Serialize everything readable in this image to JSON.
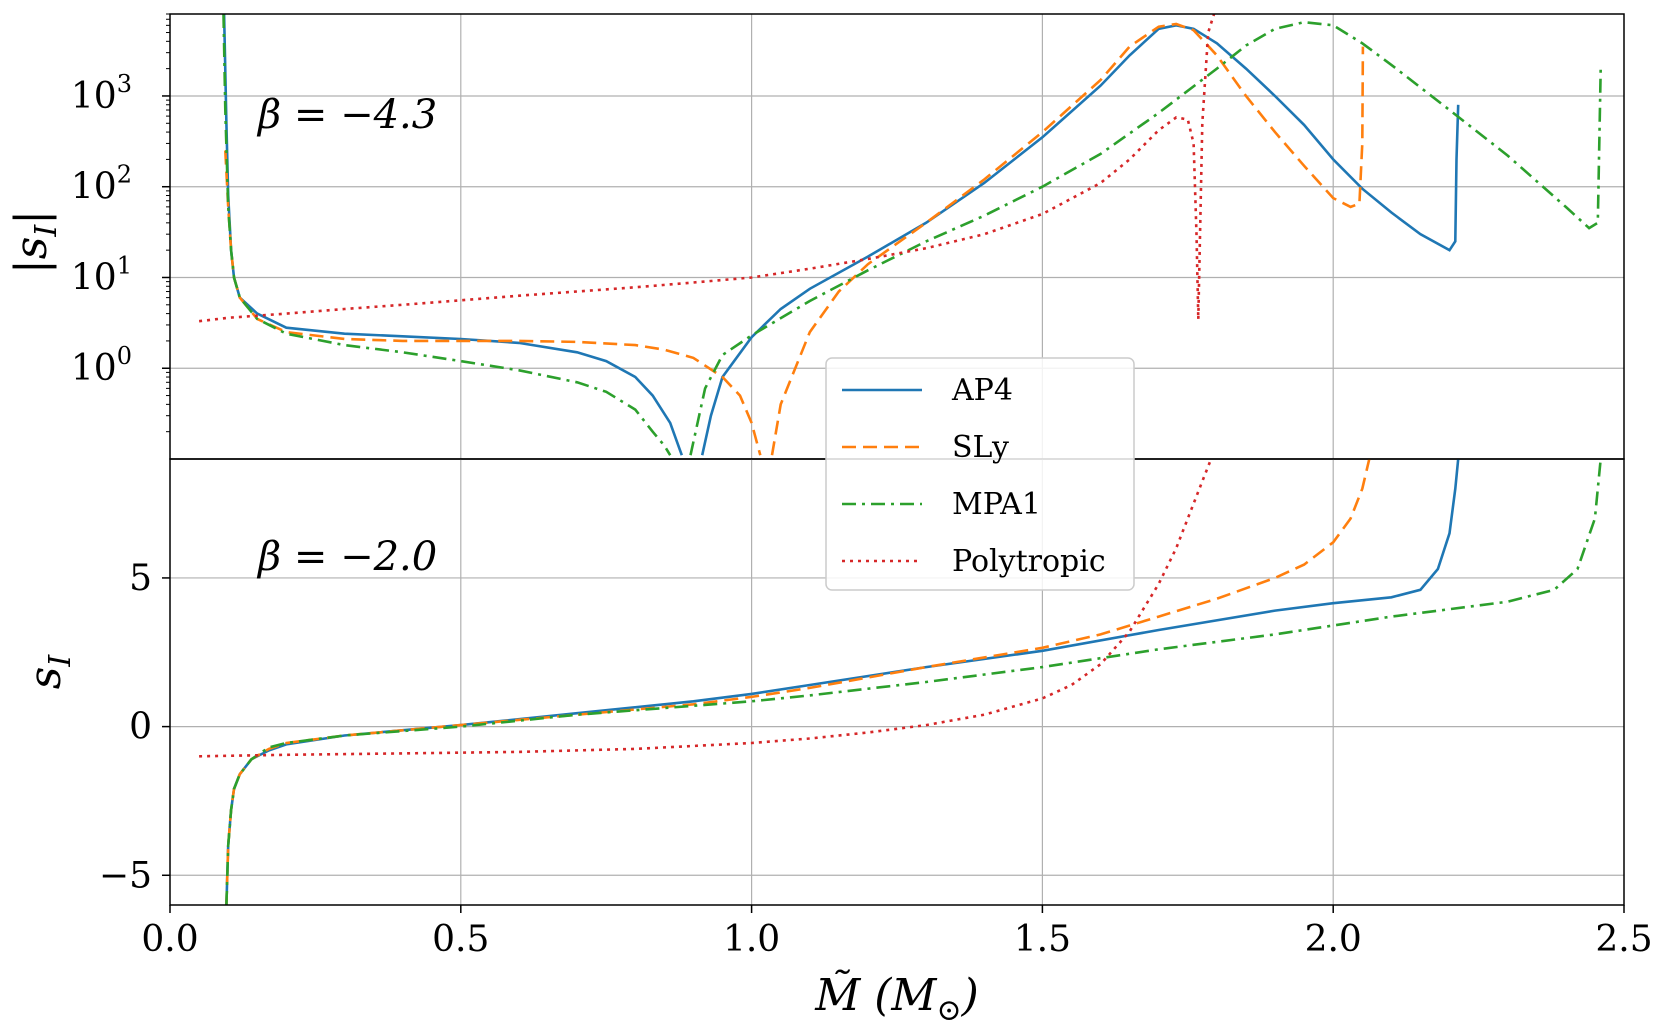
{
  "chart_data": [
    {
      "type": "line",
      "panel": "top",
      "yscale": "log",
      "ylabel": "|s_I|",
      "xlim": [
        0.0,
        2.5
      ],
      "ylim": [
        0.1,
        8000
      ],
      "grid": true,
      "annotation": "β = −4.3",
      "yticks": [
        {
          "value": 1,
          "base": "10",
          "exp": "0"
        },
        {
          "value": 10,
          "base": "10",
          "exp": "1"
        },
        {
          "value": 100,
          "base": "10",
          "exp": "2"
        },
        {
          "value": 1000,
          "base": "10",
          "exp": "3"
        }
      ],
      "series": [
        {
          "name": "AP4",
          "color": "#1f77b4",
          "style": "solid",
          "segments": [
            {
              "x": [
                0.093,
                0.097,
                0.1,
                0.105,
                0.11,
                0.12,
                0.15,
                0.2,
                0.3,
                0.4,
                0.5,
                0.6,
                0.7,
                0.75,
                0.8,
                0.83,
                0.86,
                0.88
              ],
              "y": [
                8000,
                500,
                80,
                20,
                10,
                6,
                4,
                2.8,
                2.4,
                2.25,
                2.1,
                1.9,
                1.5,
                1.2,
                0.8,
                0.5,
                0.25,
                0.11
              ]
            },
            {
              "x": [
                0.915,
                0.93,
                0.95,
                1.0,
                1.05,
                1.1,
                1.2,
                1.3,
                1.4,
                1.5,
                1.6,
                1.65,
                1.7,
                1.73,
                1.76,
                1.8,
                1.85,
                1.9,
                1.95,
                2.0,
                2.05,
                2.1,
                2.15,
                2.2,
                2.21,
                2.212,
                2.215
              ],
              "y": [
                0.11,
                0.3,
                0.8,
                2.2,
                4.5,
                7.5,
                17,
                40,
                110,
                350,
                1300,
                2800,
                5500,
                6000,
                5500,
                3800,
                2000,
                1000,
                480,
                200,
                95,
                52,
                30,
                20,
                25,
                200,
                800
              ]
            }
          ]
        },
        {
          "name": "SLy",
          "color": "#ff7f0e",
          "style": "dashed",
          "segments": [
            {
              "x": [
                0.095,
                0.1,
                0.105,
                0.11,
                0.12,
                0.15,
                0.2,
                0.3,
                0.4,
                0.5,
                0.6,
                0.7,
                0.8,
                0.85,
                0.9,
                0.95,
                0.98,
                1.0,
                1.015
              ],
              "y": [
                250,
                60,
                20,
                10,
                6,
                3.5,
                2.5,
                2.1,
                2.0,
                2.0,
                2.0,
                1.95,
                1.8,
                1.6,
                1.3,
                0.8,
                0.5,
                0.25,
                0.11
              ]
            },
            {
              "x": [
                1.035,
                1.05,
                1.1,
                1.15,
                1.2,
                1.3,
                1.4,
                1.5,
                1.6,
                1.65,
                1.7,
                1.73,
                1.76,
                1.8,
                1.85,
                1.9,
                1.95,
                2.0,
                2.03,
                2.045,
                2.05,
                2.051
              ],
              "y": [
                0.11,
                0.4,
                2.5,
                7,
                14,
                40,
                120,
                400,
                1500,
                3500,
                5800,
                6200,
                5300,
                2800,
                1000,
                400,
                170,
                75,
                60,
                65,
                300,
                3500
              ]
            }
          ]
        },
        {
          "name": "MPA1",
          "color": "#2ca02c",
          "style": "dashdot",
          "segments": [
            {
              "x": [
                0.092,
                0.095,
                0.1,
                0.105,
                0.11,
                0.12,
                0.15,
                0.2,
                0.3,
                0.4,
                0.5,
                0.6,
                0.7,
                0.75,
                0.8,
                0.83,
                0.85,
                0.86
              ],
              "y": [
                8000,
                700,
                60,
                20,
                10,
                6,
                3.5,
                2.4,
                1.8,
                1.5,
                1.2,
                0.95,
                0.7,
                0.55,
                0.35,
                0.2,
                0.14,
                0.11
              ]
            },
            {
              "x": [
                0.895,
                0.92,
                0.95,
                1.0,
                1.1,
                1.2,
                1.3,
                1.4,
                1.5,
                1.6,
                1.7,
                1.8,
                1.85,
                1.9,
                1.95,
                2.0,
                2.05,
                2.1,
                2.2,
                2.3,
                2.4,
                2.44,
                2.455,
                2.46
              ],
              "y": [
                0.11,
                0.6,
                1.4,
                2.3,
                5.5,
                12,
                25,
                48,
                100,
                230,
                650,
                2000,
                3600,
                5500,
                6500,
                6000,
                3800,
                2200,
                700,
                220,
                60,
                35,
                40,
                2000
              ]
            }
          ]
        },
        {
          "name": "Polytropic",
          "color": "#d62728",
          "style": "dotted",
          "segments": [
            {
              "x": [
                0.05,
                0.1,
                0.2,
                0.3,
                0.4,
                0.5,
                0.6,
                0.7,
                0.8,
                0.9,
                1.0,
                1.1,
                1.2,
                1.3,
                1.4,
                1.5,
                1.6,
                1.65,
                1.7,
                1.73,
                1.75,
                1.76,
                1.765,
                1.768
              ],
              "y": [
                3.3,
                3.6,
                4.0,
                4.5,
                5.0,
                5.6,
                6.3,
                7.0,
                7.8,
                8.8,
                10,
                12.5,
                16,
                21,
                30,
                50,
                110,
                200,
                420,
                580,
                550,
                300,
                30,
                3.5
              ]
            },
            {
              "x": [
                1.768,
                1.775,
                1.785,
                1.795
              ],
              "y": [
                3.5,
                500,
                5000,
                8000
              ]
            }
          ]
        }
      ]
    },
    {
      "type": "line",
      "panel": "bottom",
      "yscale": "linear",
      "ylabel": "s_I",
      "xlabel": "M̃ (M⊙)",
      "xlim": [
        0.0,
        2.5
      ],
      "ylim": [
        -6,
        9
      ],
      "grid": true,
      "annotation": "β = −2.0",
      "xticks": [
        "0.0",
        "0.5",
        "1.0",
        "1.5",
        "2.0",
        "2.5"
      ],
      "yticks": [
        "−5",
        "0",
        "5"
      ],
      "ytick_values": [
        -5,
        0,
        5
      ],
      "series": [
        {
          "name": "AP4",
          "color": "#1f77b4",
          "style": "solid",
          "x": [
            0.097,
            0.1,
            0.105,
            0.11,
            0.12,
            0.14,
            0.17,
            0.2,
            0.3,
            0.5,
            0.7,
            0.9,
            1.0,
            1.1,
            1.3,
            1.5,
            1.7,
            1.9,
            2.0,
            2.1,
            2.15,
            2.18,
            2.2,
            2.21,
            2.215
          ],
          "y": [
            -6,
            -4,
            -2.8,
            -2.1,
            -1.6,
            -1.1,
            -0.8,
            -0.6,
            -0.3,
            0.05,
            0.45,
            0.85,
            1.1,
            1.4,
            2.0,
            2.55,
            3.25,
            3.9,
            4.15,
            4.35,
            4.6,
            5.3,
            6.5,
            8,
            9
          ]
        },
        {
          "name": "SLy",
          "color": "#ff7f0e",
          "style": "dashed",
          "x": [
            0.097,
            0.1,
            0.105,
            0.11,
            0.12,
            0.14,
            0.17,
            0.2,
            0.3,
            0.5,
            0.7,
            0.9,
            1.0,
            1.1,
            1.3,
            1.5,
            1.6,
            1.7,
            1.8,
            1.9,
            1.95,
            2.0,
            2.03,
            2.05,
            2.062
          ],
          "y": [
            -6,
            -4,
            -2.8,
            -2.1,
            -1.6,
            -1.1,
            -0.75,
            -0.55,
            -0.3,
            0.05,
            0.4,
            0.75,
            1.0,
            1.3,
            2.0,
            2.65,
            3.1,
            3.7,
            4.3,
            5.0,
            5.45,
            6.2,
            7.0,
            8.0,
            9
          ]
        },
        {
          "name": "MPA1",
          "color": "#2ca02c",
          "style": "dashdot",
          "x": [
            0.097,
            0.1,
            0.105,
            0.11,
            0.12,
            0.14,
            0.17,
            0.2,
            0.3,
            0.5,
            0.7,
            0.9,
            1.0,
            1.1,
            1.3,
            1.5,
            1.7,
            1.9,
            2.0,
            2.1,
            2.2,
            2.3,
            2.38,
            2.42,
            2.45,
            2.46
          ],
          "y": [
            -6,
            -4,
            -2.8,
            -2.1,
            -1.6,
            -1.1,
            -0.7,
            -0.55,
            -0.3,
            0.0,
            0.4,
            0.7,
            0.85,
            1.05,
            1.5,
            2.0,
            2.6,
            3.1,
            3.4,
            3.7,
            3.95,
            4.2,
            4.6,
            5.3,
            7.0,
            9
          ]
        },
        {
          "name": "Polytropic",
          "color": "#d62728",
          "style": "dotted",
          "x": [
            0.05,
            0.2,
            0.4,
            0.6,
            0.8,
            1.0,
            1.1,
            1.2,
            1.3,
            1.4,
            1.5,
            1.55,
            1.6,
            1.65,
            1.7,
            1.73,
            1.76,
            1.78,
            1.79
          ],
          "y": [
            -1.0,
            -0.95,
            -0.9,
            -0.85,
            -0.75,
            -0.55,
            -0.4,
            -0.2,
            0.05,
            0.4,
            0.95,
            1.4,
            2.1,
            3.2,
            4.8,
            6.0,
            7.5,
            8.5,
            9
          ]
        }
      ]
    }
  ],
  "legend": {
    "location": "center",
    "entries": [
      {
        "label": "AP4",
        "color": "#1f77b4",
        "style": "solid"
      },
      {
        "label": "SLy",
        "color": "#ff7f0e",
        "style": "dashed"
      },
      {
        "label": "MPA1",
        "color": "#2ca02c",
        "style": "dashdot"
      },
      {
        "label": "Polytropic",
        "color": "#d62728",
        "style": "dotted"
      }
    ]
  },
  "labels": {
    "top_ylabel": "|s",
    "top_ylabel_sub": "I",
    "top_ylabel_close": "|",
    "bottom_ylabel": "s",
    "bottom_ylabel_sub": "I",
    "xlabel_main": "M̃ (M",
    "xlabel_sub": "⊙",
    "xlabel_close": ")",
    "top_annotation": "β = −4.3",
    "bottom_annotation": "β = −2.0"
  }
}
